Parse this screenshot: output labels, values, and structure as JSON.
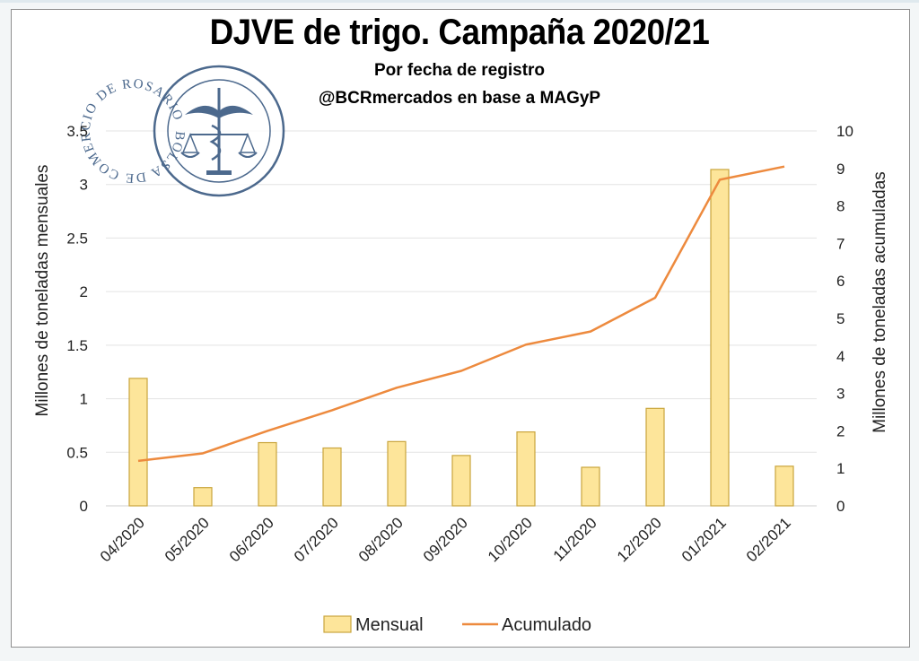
{
  "title": "DJVE de trigo. Campaña 2020/21",
  "subtitle_1": "Por fecha de registro",
  "subtitle_2": "@BCRmercados en base a MAGyP",
  "watermark_text": "BOLSA DE COMERCIO DE ROSARIO",
  "colors": {
    "bar_fill": "#fde59a",
    "bar_stroke": "#c9a53c",
    "line": "#ed8a3e",
    "grid": "#e3e3e3",
    "seal": "#2d4f7a"
  },
  "chart_data": {
    "type": "bar",
    "categories": [
      "04/2020",
      "05/2020",
      "06/2020",
      "07/2020",
      "08/2020",
      "09/2020",
      "10/2020",
      "11/2020",
      "12/2020",
      "01/2021",
      "02/2021"
    ],
    "series": [
      {
        "name": "Mensual",
        "type": "bar",
        "axis": "left",
        "values": [
          1.19,
          0.17,
          0.59,
          0.54,
          0.6,
          0.47,
          0.69,
          0.36,
          0.91,
          3.14,
          0.37
        ]
      },
      {
        "name": "Acumulado",
        "type": "line",
        "axis": "right",
        "values": [
          1.2,
          1.4,
          2.0,
          2.55,
          3.15,
          3.6,
          4.3,
          4.65,
          5.55,
          8.7,
          9.05
        ]
      }
    ],
    "ylabel": "Millones de toneladas mensuales",
    "y2label": "Millones de toneladas acumuladas",
    "ylim": [
      0,
      3.5
    ],
    "y2lim": [
      0,
      10
    ],
    "yticks": [
      "0",
      "0.5",
      "1",
      "1.5",
      "2",
      "2.5",
      "3",
      "3.5"
    ],
    "y2ticks": [
      "0",
      "1",
      "2",
      "3",
      "4",
      "5",
      "6",
      "7",
      "8",
      "9",
      "10"
    ],
    "grid": true,
    "legend_position": "bottom"
  }
}
